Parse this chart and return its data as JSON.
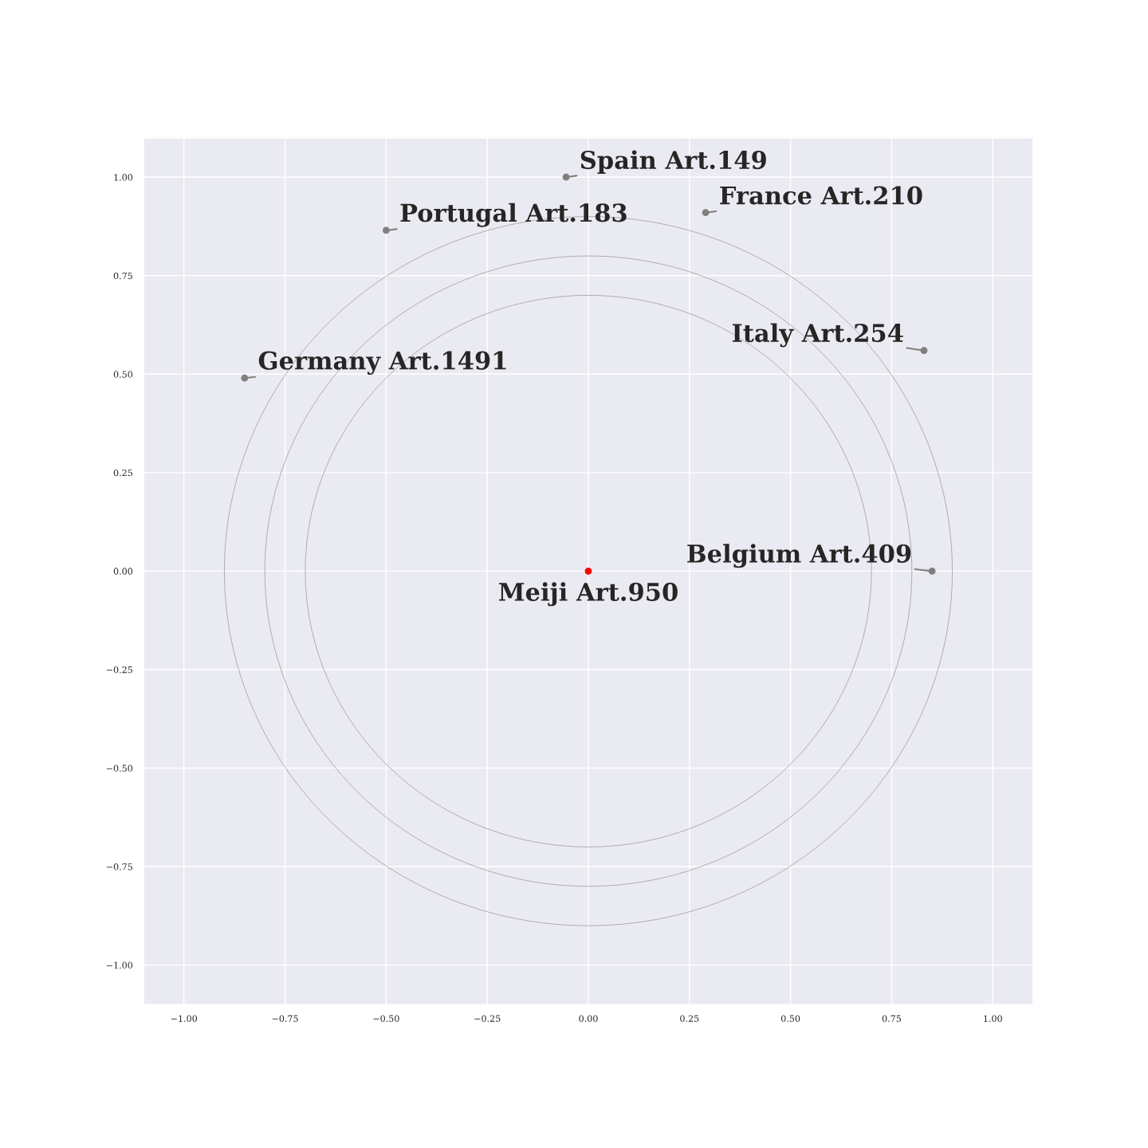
{
  "chart_data": {
    "type": "scatter",
    "xlim": [
      -1.1,
      1.1
    ],
    "ylim": [
      -1.1,
      1.1
    ],
    "xticks": [
      {
        "value": -1.0,
        "label": "−1.00"
      },
      {
        "value": -0.75,
        "label": "−0.75"
      },
      {
        "value": -0.5,
        "label": "−0.50"
      },
      {
        "value": -0.25,
        "label": "−0.25"
      },
      {
        "value": 0,
        "label": "0.00"
      },
      {
        "value": 0.25,
        "label": "0.25"
      },
      {
        "value": 0.5,
        "label": "0.50"
      },
      {
        "value": 0.75,
        "label": "0.75"
      },
      {
        "value": 1.0,
        "label": "1.00"
      }
    ],
    "yticks": [
      {
        "value": -1.0,
        "label": "−1.00"
      },
      {
        "value": -0.75,
        "label": "−0.75"
      },
      {
        "value": -0.5,
        "label": "−0.50"
      },
      {
        "value": -0.25,
        "label": "−0.25"
      },
      {
        "value": 0,
        "label": "0.00"
      },
      {
        "value": 0.25,
        "label": "0.25"
      },
      {
        "value": 0.5,
        "label": "0.50"
      },
      {
        "value": 0.75,
        "label": "0.75"
      },
      {
        "value": 1.0,
        "label": "1.00"
      }
    ],
    "grid": true,
    "series": [
      {
        "color": "#808080",
        "x": [
          0.85,
          0.83,
          0.29,
          -0.055,
          -0.5,
          -0.85
        ],
        "values": [
          0.0,
          0.56,
          0.91,
          1.0,
          0.865,
          0.49
        ]
      },
      {
        "color": "#ff0000",
        "x": [
          0.0
        ],
        "values": [
          0.0
        ]
      }
    ],
    "annotations": [
      {
        "text": "Meiji Art.950",
        "x": 0.0,
        "y": 0.0
      },
      {
        "text": "Belgium Art.409",
        "x": 0.85,
        "y": 0.0
      },
      {
        "text": "Italy Art.254",
        "x": 0.83,
        "y": 0.56
      },
      {
        "text": "France Art.210",
        "x": 0.29,
        "y": 0.91
      },
      {
        "text": "Spain Art.149",
        "x": -0.055,
        "y": 1.0
      },
      {
        "text": "Portugal Art.183",
        "x": -0.5,
        "y": 0.865
      },
      {
        "text": "Germany Art.1491",
        "x": -0.85,
        "y": 0.49
      }
    ]
  }
}
